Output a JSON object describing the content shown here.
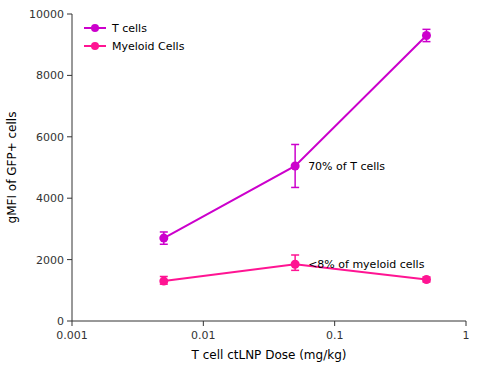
{
  "chart_data": {
    "type": "line",
    "xlabel": "T cell ctLNP Dose (mg/kg)",
    "ylabel": "gMFI of GFP+ cells",
    "x": [
      0.005,
      0.05,
      0.5
    ],
    "series": [
      {
        "name": "T cells",
        "color": "#CC00CC",
        "marker": "o",
        "line_style": "solid",
        "values": [
          2700,
          5050,
          9300
        ],
        "errors": [
          200,
          700,
          200
        ]
      },
      {
        "name": "Myeloid Cells",
        "color": "#FF1493",
        "marker": "o",
        "line_style": "solid",
        "values": [
          1300,
          1850,
          1350
        ],
        "errors_lower": [
          100,
          200,
          80
        ],
        "errors_upper": [
          150,
          300,
          80
        ]
      }
    ],
    "annotations": [
      {
        "text": "70% of T cells",
        "x": 0.05,
        "y": 5050
      },
      {
        "text": "<8% of myeloid cells",
        "x": 0.05,
        "y": 1850
      }
    ],
    "log": "x",
    "xlim": [
      0.001,
      1
    ],
    "xticks": [
      0.001,
      0.01,
      0.1,
      1
    ],
    "ylim": [
      0,
      10000
    ],
    "yticks": [
      0,
      2000,
      4000,
      6000,
      8000,
      10000
    ],
    "grid": false,
    "legend": "upper left"
  }
}
